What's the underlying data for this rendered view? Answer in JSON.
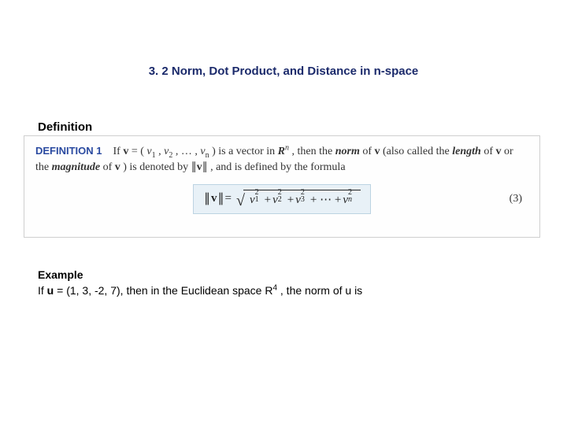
{
  "title": "3. 2 Norm, Dot Product, and Distance in n-space",
  "definition_label": "Definition",
  "def": {
    "lead": "DEFINITION 1",
    "text_before_v": "If ",
    "v": "v",
    "eq": " = (",
    "v1": "v",
    "s1": "1",
    "comma": ", ",
    "v2": "v",
    "s2": "2",
    "dots": ", … , ",
    "vn": "v",
    "sn": "n",
    "close": ") is a vector in ",
    "Rn_R": "R",
    "Rn_n": "n",
    "post_Rn": ", then the ",
    "norm_word": "norm",
    "of_v": " of ",
    "also_open": " (also called the ",
    "length_word": "length",
    "of_v2": " of ",
    "or_the": " or the ",
    "magnitude_word": "magnitude",
    "of_v3": " of ",
    "denoted": ") is denoted by ",
    "norm_sym_open": "∥",
    "norm_sym_v": "v",
    "norm_sym_close": "∥",
    "and_defined": ", and is defined by the formula"
  },
  "formula": {
    "lhs_open": "∥",
    "lhs_v": "v",
    "lhs_close": "∥",
    "eq": " = ",
    "terms": [
      {
        "base": "v",
        "sub": "1",
        "sup": "2"
      },
      {
        "base": "v",
        "sub": "2",
        "sup": "2"
      },
      {
        "base": "v",
        "sub": "3",
        "sup": "2"
      }
    ],
    "plus": " + ",
    "dots": " + ⋯ + ",
    "last": {
      "base": "v",
      "sub": "n",
      "sup": "2"
    },
    "eqnum": "(3)"
  },
  "example": {
    "label": "Example",
    "line_pre": "If ",
    "u": "u",
    "vec": " = (1, 3, -2, 7), then in the Euclidean space R",
    "rsup": "4",
    "post": " , the norm of u is"
  },
  "colors": {
    "title": "#1b2a6b",
    "deflabel": "#2a4aa0",
    "box_border": "#cfcfcf",
    "formula_bg": "#e8f1f7",
    "formula_border": "#bcd3e2"
  }
}
